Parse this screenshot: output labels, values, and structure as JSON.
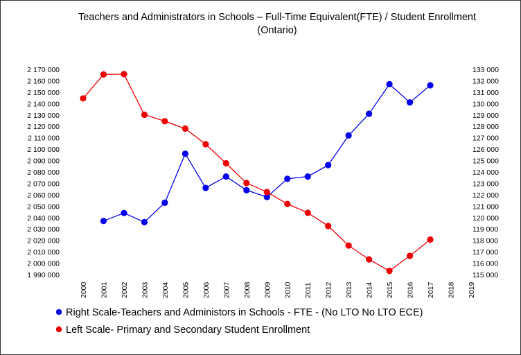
{
  "chart_data": {
    "type": "line",
    "title": "Teachers and Administrators in Schools – Full-Time Equivalent(FTE) / Student Enrollment",
    "subtitle": "(Ontario)",
    "x_ticks": [
      "2000",
      "2001",
      "2002",
      "2003",
      "2004",
      "2005",
      "2006",
      "2007",
      "2008",
      "2009",
      "2010",
      "2011",
      "2012",
      "2013",
      "2014",
      "2015",
      "2016",
      "2017",
      "2018",
      "2019"
    ],
    "xlim": [
      2000,
      2019
    ],
    "y_left": {
      "lim": [
        1990000,
        2170000
      ],
      "ticks": [
        "2 170 000",
        "2 160 000",
        "2 150 000",
        "2 140 000",
        "2 130 000",
        "2 120 000",
        "2 110 000",
        "2 100 000",
        "2 090 000",
        "2 080 000",
        "2 070 000",
        "2 060 000",
        "2 050 000",
        "2 040 000",
        "2 030 000",
        "2 020 000",
        "2 010 000",
        "2 000 000",
        "1 990 000"
      ]
    },
    "y_right": {
      "lim": [
        115000,
        133000
      ],
      "ticks": [
        "133 000",
        "132 000",
        "131 000",
        "130 000",
        "129 000",
        "128 000",
        "127 000",
        "126 000",
        "125 000",
        "124 000",
        "123 000",
        "122 000",
        "121 000",
        "120 000",
        "119 000",
        "118 000",
        "117 000",
        "116 000",
        "115 000"
      ]
    },
    "grid": false,
    "legend_position": "bottom",
    "series": [
      {
        "name": "Right Scale-Teachers and Administors in Schools - FTE - (No LTO No LTO ECE)",
        "axis": "right",
        "color": "#0000ee",
        "x": [
          2001,
          2002,
          2003,
          2004,
          2005,
          2006,
          2007,
          2008,
          2009,
          2010,
          2011,
          2012,
          2013,
          2014,
          2015,
          2016,
          2017
        ],
        "values": [
          119700,
          120400,
          119600,
          121300,
          125600,
          122600,
          123600,
          122400,
          121800,
          123400,
          123600,
          124600,
          127200,
          129100,
          131700,
          130100,
          131600
        ]
      },
      {
        "name": "Left Scale- Primary and Secondary Student Enrollment",
        "axis": "left",
        "color": "#ee0000",
        "x": [
          2000,
          2001,
          2002,
          2003,
          2004,
          2005,
          2006,
          2007,
          2008,
          2009,
          2010,
          2011,
          2012,
          2013,
          2014,
          2015,
          2016,
          2017
        ],
        "values": [
          2144500,
          2165500,
          2165800,
          2130200,
          2124500,
          2118000,
          2104300,
          2087600,
          2070300,
          2062400,
          2052000,
          2044200,
          2032600,
          2015500,
          2003300,
          1993200,
          2006400,
          2020700
        ]
      }
    ]
  }
}
